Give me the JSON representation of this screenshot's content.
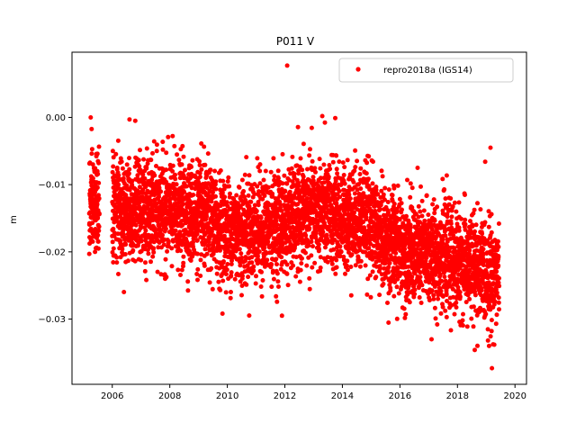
{
  "chart_data": {
    "type": "scatter",
    "title": "P011 V",
    "xlabel": "",
    "ylabel": "m",
    "xlim": [
      2004.6,
      2020.4
    ],
    "ylim": [
      -0.0397,
      0.0097
    ],
    "xticks": [
      2006,
      2008,
      2010,
      2012,
      2014,
      2016,
      2018,
      2020
    ],
    "xtick_labels": [
      "2006",
      "2008",
      "2010",
      "2012",
      "2014",
      "2016",
      "2018",
      "2020"
    ],
    "yticks": [
      0.0,
      -0.01,
      -0.02,
      -0.03
    ],
    "ytick_labels": [
      "0.00",
      "−0.01",
      "−0.02",
      "−0.03"
    ],
    "grid": false,
    "legend_position": "top-right",
    "series": [
      {
        "name": "repro2018a (IGS14)",
        "color": "#ff0000",
        "marker": "circle",
        "trend_knots": [
          [
            2005.2,
            -0.013
          ],
          [
            2006.0,
            -0.0135
          ],
          [
            2007.0,
            -0.0138
          ],
          [
            2008.0,
            -0.014
          ],
          [
            2009.0,
            -0.0145
          ],
          [
            2010.0,
            -0.017
          ],
          [
            2011.0,
            -0.0165
          ],
          [
            2012.0,
            -0.0158
          ],
          [
            2013.0,
            -0.014
          ],
          [
            2014.0,
            -0.015
          ],
          [
            2014.8,
            -0.0145
          ],
          [
            2015.5,
            -0.0185
          ],
          [
            2016.5,
            -0.02
          ],
          [
            2017.5,
            -0.0205
          ],
          [
            2018.0,
            -0.0215
          ],
          [
            2019.4,
            -0.0235
          ]
        ],
        "scatter_sd": 0.0038,
        "segments": [
          [
            2005.2,
            2005.55
          ],
          [
            2006.0,
            2019.45
          ]
        ],
        "point_count": 5000,
        "outliers": [
          {
            "x": 2005.25,
            "y": 0.0
          },
          {
            "x": 2012.08,
            "y": 0.0077
          },
          {
            "x": 2013.3,
            "y": 0.0002
          },
          {
            "x": 2013.75,
            "y": -0.0001
          },
          {
            "x": 2006.6,
            "y": -0.0003
          },
          {
            "x": 2006.8,
            "y": -0.0005
          },
          {
            "x": 2019.15,
            "y": -0.0045
          },
          {
            "x": 2011.9,
            "y": -0.0295
          },
          {
            "x": 2019.2,
            "y": -0.0373
          },
          {
            "x": 2018.6,
            "y": -0.0346
          },
          {
            "x": 2017.1,
            "y": -0.033
          },
          {
            "x": 2019.1,
            "y": -0.034
          },
          {
            "x": 2005.2,
            "y": -0.0203
          }
        ]
      }
    ]
  }
}
